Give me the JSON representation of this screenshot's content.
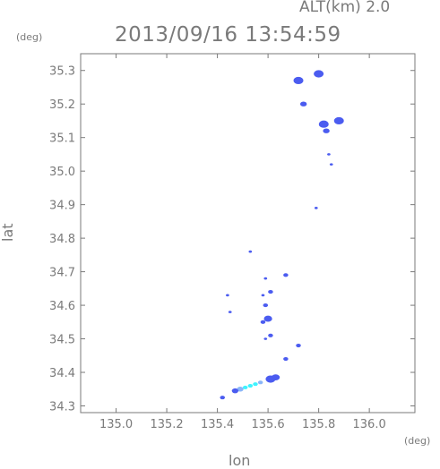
{
  "chart_data": {
    "type": "scatter",
    "title": "ALT(km) 2.0",
    "subtitle": "2013/09/16 13:54:59",
    "xlabel": "lon",
    "ylabel": "lat",
    "xunit": "(deg)",
    "yunit": "(deg)",
    "xlim": [
      134.86,
      136.18
    ],
    "ylim": [
      34.28,
      35.35
    ],
    "xticks": [
      "135.0",
      "135.2",
      "135.4",
      "135.6",
      "135.8",
      "136.0"
    ],
    "yticks": [
      "34.3",
      "34.4",
      "34.5",
      "34.6",
      "34.7",
      "34.8",
      "34.9",
      "35.0",
      "35.1",
      "35.2",
      "35.3"
    ],
    "grid": false,
    "colors": {
      "blue": "#4b5cf0",
      "light_blue": "#8ab6f8",
      "cyan": "#3ff3ff",
      "axis": "#7a7a7a"
    },
    "points": [
      {
        "x": 135.72,
        "y": 35.27,
        "size": 3,
        "color": "blue"
      },
      {
        "x": 135.8,
        "y": 35.29,
        "size": 3,
        "color": "blue"
      },
      {
        "x": 135.74,
        "y": 35.2,
        "size": 2,
        "color": "blue"
      },
      {
        "x": 135.82,
        "y": 35.14,
        "size": 3,
        "color": "blue"
      },
      {
        "x": 135.83,
        "y": 35.12,
        "size": 2,
        "color": "blue"
      },
      {
        "x": 135.88,
        "y": 35.15,
        "size": 3,
        "color": "blue"
      },
      {
        "x": 135.84,
        "y": 35.05,
        "size": 1,
        "color": "blue"
      },
      {
        "x": 135.85,
        "y": 35.02,
        "size": 1,
        "color": "blue"
      },
      {
        "x": 135.79,
        "y": 34.89,
        "size": 1,
        "color": "blue"
      },
      {
        "x": 135.53,
        "y": 34.76,
        "size": 1,
        "color": "blue"
      },
      {
        "x": 135.59,
        "y": 34.68,
        "size": 1,
        "color": "blue"
      },
      {
        "x": 135.67,
        "y": 34.69,
        "size": 1.5,
        "color": "blue"
      },
      {
        "x": 135.44,
        "y": 34.63,
        "size": 1,
        "color": "blue"
      },
      {
        "x": 135.58,
        "y": 34.63,
        "size": 1,
        "color": "blue"
      },
      {
        "x": 135.61,
        "y": 34.64,
        "size": 1.5,
        "color": "blue"
      },
      {
        "x": 135.59,
        "y": 34.6,
        "size": 1.5,
        "color": "blue"
      },
      {
        "x": 135.6,
        "y": 34.56,
        "size": 2.5,
        "color": "blue"
      },
      {
        "x": 135.58,
        "y": 34.55,
        "size": 1.5,
        "color": "blue"
      },
      {
        "x": 135.61,
        "y": 34.51,
        "size": 1.5,
        "color": "blue"
      },
      {
        "x": 135.59,
        "y": 34.5,
        "size": 1,
        "color": "blue"
      },
      {
        "x": 135.45,
        "y": 34.58,
        "size": 1,
        "color": "blue"
      },
      {
        "x": 135.72,
        "y": 34.48,
        "size": 1.5,
        "color": "blue"
      },
      {
        "x": 135.67,
        "y": 34.44,
        "size": 1.5,
        "color": "blue"
      },
      {
        "x": 135.61,
        "y": 34.38,
        "size": 3,
        "color": "blue"
      },
      {
        "x": 135.63,
        "y": 34.385,
        "size": 2.5,
        "color": "blue"
      },
      {
        "x": 135.57,
        "y": 34.37,
        "size": 1.5,
        "color": "light_blue"
      },
      {
        "x": 135.55,
        "y": 34.365,
        "size": 1.5,
        "color": "cyan"
      },
      {
        "x": 135.53,
        "y": 34.36,
        "size": 1.5,
        "color": "cyan"
      },
      {
        "x": 135.51,
        "y": 34.355,
        "size": 1.5,
        "color": "cyan"
      },
      {
        "x": 135.49,
        "y": 34.35,
        "size": 2,
        "color": "light_blue"
      },
      {
        "x": 135.47,
        "y": 34.345,
        "size": 2,
        "color": "blue"
      },
      {
        "x": 135.42,
        "y": 34.325,
        "size": 1.5,
        "color": "blue"
      }
    ]
  }
}
